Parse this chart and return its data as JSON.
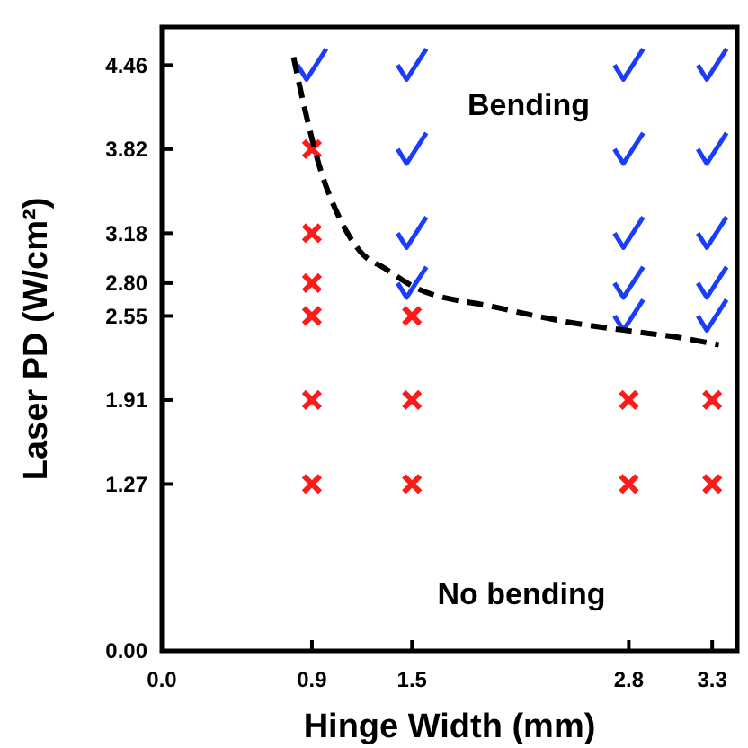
{
  "chart_data": {
    "type": "scatter",
    "xlabel": "Hinge Width (mm)",
    "ylabel": "Laser PD (W/cm²)",
    "xlim": [
      0,
      3.45
    ],
    "xticks": [
      {
        "value": 0,
        "label": "0.0"
      },
      0.9,
      1.5,
      2.8,
      3.3
    ],
    "ylim": [
      0,
      4.75
    ],
    "yticks": [
      {
        "value": 0,
        "label": "0.00"
      },
      1.27,
      1.91,
      2.55,
      {
        "value": 2.8,
        "label": "2.80"
      },
      3.18,
      3.82,
      4.46
    ],
    "grid": false,
    "series": [
      {
        "marker": "cross",
        "color": "#ff1a1a",
        "x": [
          0.9,
          0.9,
          0.9,
          0.9,
          0.9,
          0.9,
          1.5,
          1.5,
          1.5,
          2.8,
          2.8,
          3.3,
          3.3
        ],
        "values": [
          1.27,
          1.91,
          2.55,
          2.8,
          3.18,
          3.82,
          1.27,
          1.91,
          2.55,
          1.27,
          1.91,
          1.27,
          1.91
        ]
      },
      {
        "color": "#1a3cff",
        "x": [
          0.9,
          1.5,
          1.5,
          1.5,
          1.5,
          2.8,
          2.8,
          2.8,
          2.8,
          2.8,
          3.3,
          3.3,
          3.3,
          3.3,
          3.3
        ],
        "values": [
          4.46,
          2.8,
          3.18,
          3.82,
          4.46,
          2.55,
          2.8,
          3.18,
          3.82,
          4.46,
          2.55,
          2.8,
          3.18,
          3.82,
          4.46
        ]
      },
      {
        "type": "line",
        "line_style": "dashed",
        "color": "#000000",
        "x": [
          0.79,
          0.86,
          0.95,
          1.06,
          1.19,
          1.34,
          1.53,
          1.99,
          2.45,
          2.84,
          3.08,
          3.34
        ],
        "values": [
          4.52,
          4.11,
          3.67,
          3.31,
          3.04,
          2.91,
          2.76,
          2.62,
          2.5,
          2.43,
          2.39,
          2.33
        ]
      }
    ],
    "annotations": [
      "Bending",
      "No bending"
    ]
  }
}
